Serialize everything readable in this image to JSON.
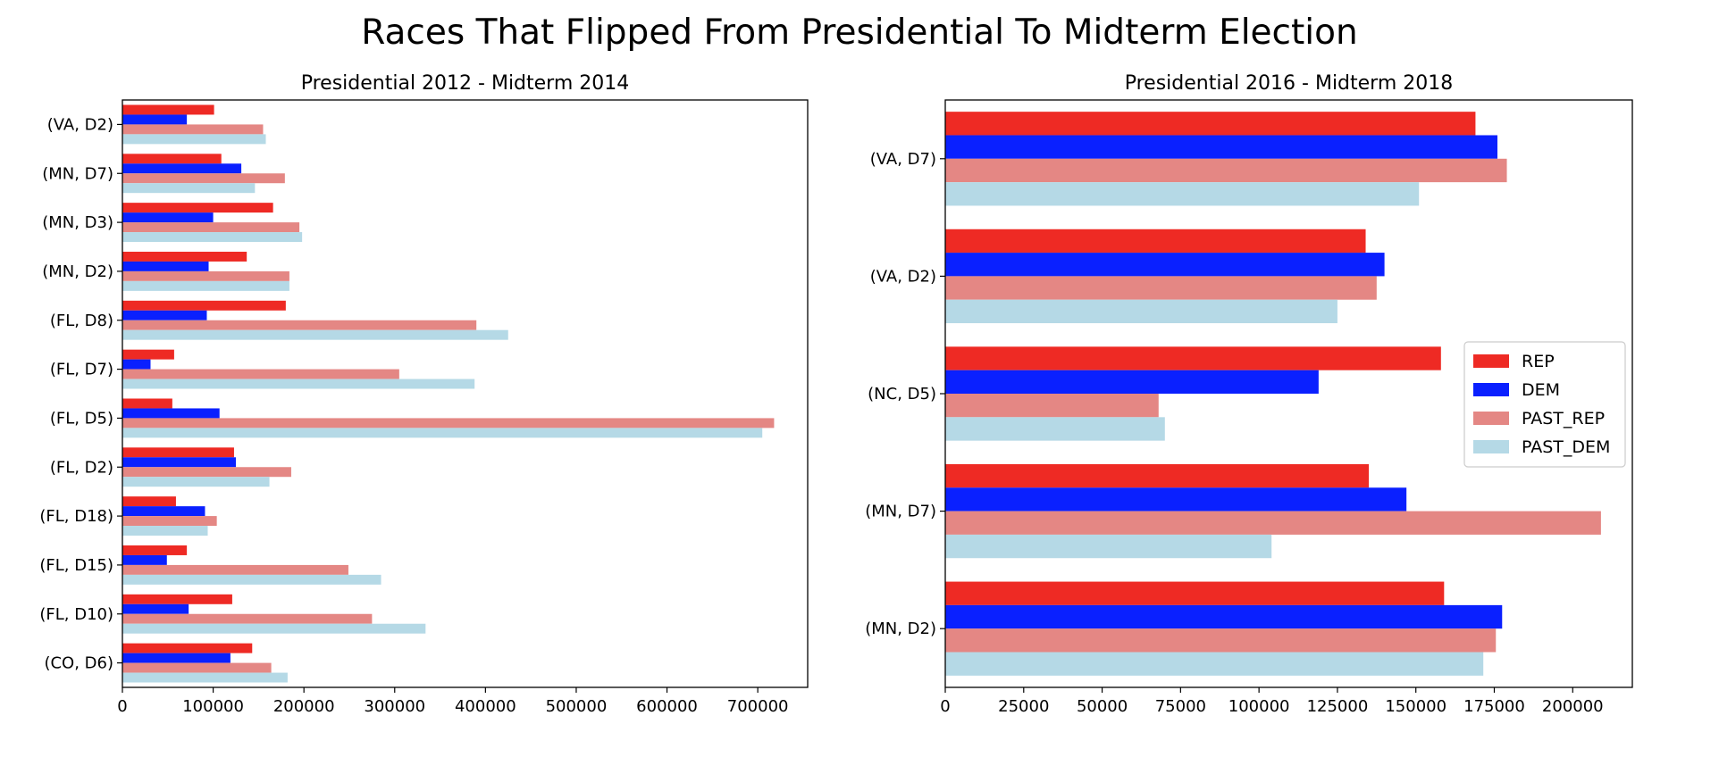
{
  "title": "Races That Flipped From Presidential To Midterm Election",
  "colors": {
    "REP": "#ee2a24",
    "DEM": "#0a20ff",
    "PAST_REP": "#e48784",
    "PAST_DEM": "#b5d9e6",
    "axis": "#000000"
  },
  "chart_data": [
    {
      "type": "bar",
      "orientation": "horizontal",
      "title": "Presidential 2012 - Midterm 2014",
      "categories": [
        "(CO, D6)",
        "(FL, D10)",
        "(FL, D15)",
        "(FL, D18)",
        "(FL, D2)",
        "(FL, D5)",
        "(FL, D7)",
        "(FL, D8)",
        "(MN, D2)",
        "(MN, D3)",
        "(MN, D7)",
        "(VA, D2)"
      ],
      "series": [
        {
          "name": "REP",
          "values": [
            143000,
            121000,
            71000,
            59000,
            123000,
            55000,
            57000,
            180000,
            137000,
            166000,
            109000,
            101000
          ]
        },
        {
          "name": "DEM",
          "values": [
            119000,
            73000,
            49000,
            91000,
            125000,
            107000,
            31000,
            93000,
            95000,
            100000,
            131000,
            71000
          ]
        },
        {
          "name": "PAST_REP",
          "values": [
            164000,
            275000,
            249000,
            104000,
            186000,
            718000,
            305000,
            390000,
            184000,
            195000,
            179000,
            155000
          ]
        },
        {
          "name": "PAST_DEM",
          "values": [
            182000,
            334000,
            285000,
            94000,
            162000,
            705000,
            388000,
            425000,
            184000,
            198000,
            146000,
            158000
          ]
        }
      ],
      "xlim": [
        0,
        755000
      ],
      "xticks": [
        0,
        100000,
        200000,
        300000,
        400000,
        500000,
        600000,
        700000
      ],
      "xtick_labels": [
        "0",
        "100000",
        "200000",
        "300000",
        "400000",
        "500000",
        "600000",
        "700000"
      ],
      "legend": "none"
    },
    {
      "type": "bar",
      "orientation": "horizontal",
      "title": "Presidential 2016 - Midterm 2018",
      "categories": [
        "(MN, D2)",
        "(MN, D7)",
        "(NC, D5)",
        "(VA, D2)",
        "(VA, D7)"
      ],
      "series": [
        {
          "name": "REP",
          "values": [
            159000,
            135000,
            158000,
            134000,
            169000
          ]
        },
        {
          "name": "DEM",
          "values": [
            177500,
            147000,
            119000,
            140000,
            176000
          ]
        },
        {
          "name": "PAST_REP",
          "values": [
            175500,
            209000,
            68000,
            137500,
            179000
          ]
        },
        {
          "name": "PAST_DEM",
          "values": [
            171500,
            104000,
            70000,
            125000,
            151000
          ]
        }
      ],
      "xlim": [
        0,
        219000
      ],
      "xticks": [
        0,
        25000,
        50000,
        75000,
        100000,
        125000,
        150000,
        175000,
        200000
      ],
      "xtick_labels": [
        "0",
        "25000",
        "50000",
        "75000",
        "100000",
        "125000",
        "150000",
        "175000",
        "200000"
      ],
      "legend": "center-right",
      "legend_entries": [
        "REP",
        "DEM",
        "PAST_REP",
        "PAST_DEM"
      ]
    }
  ]
}
